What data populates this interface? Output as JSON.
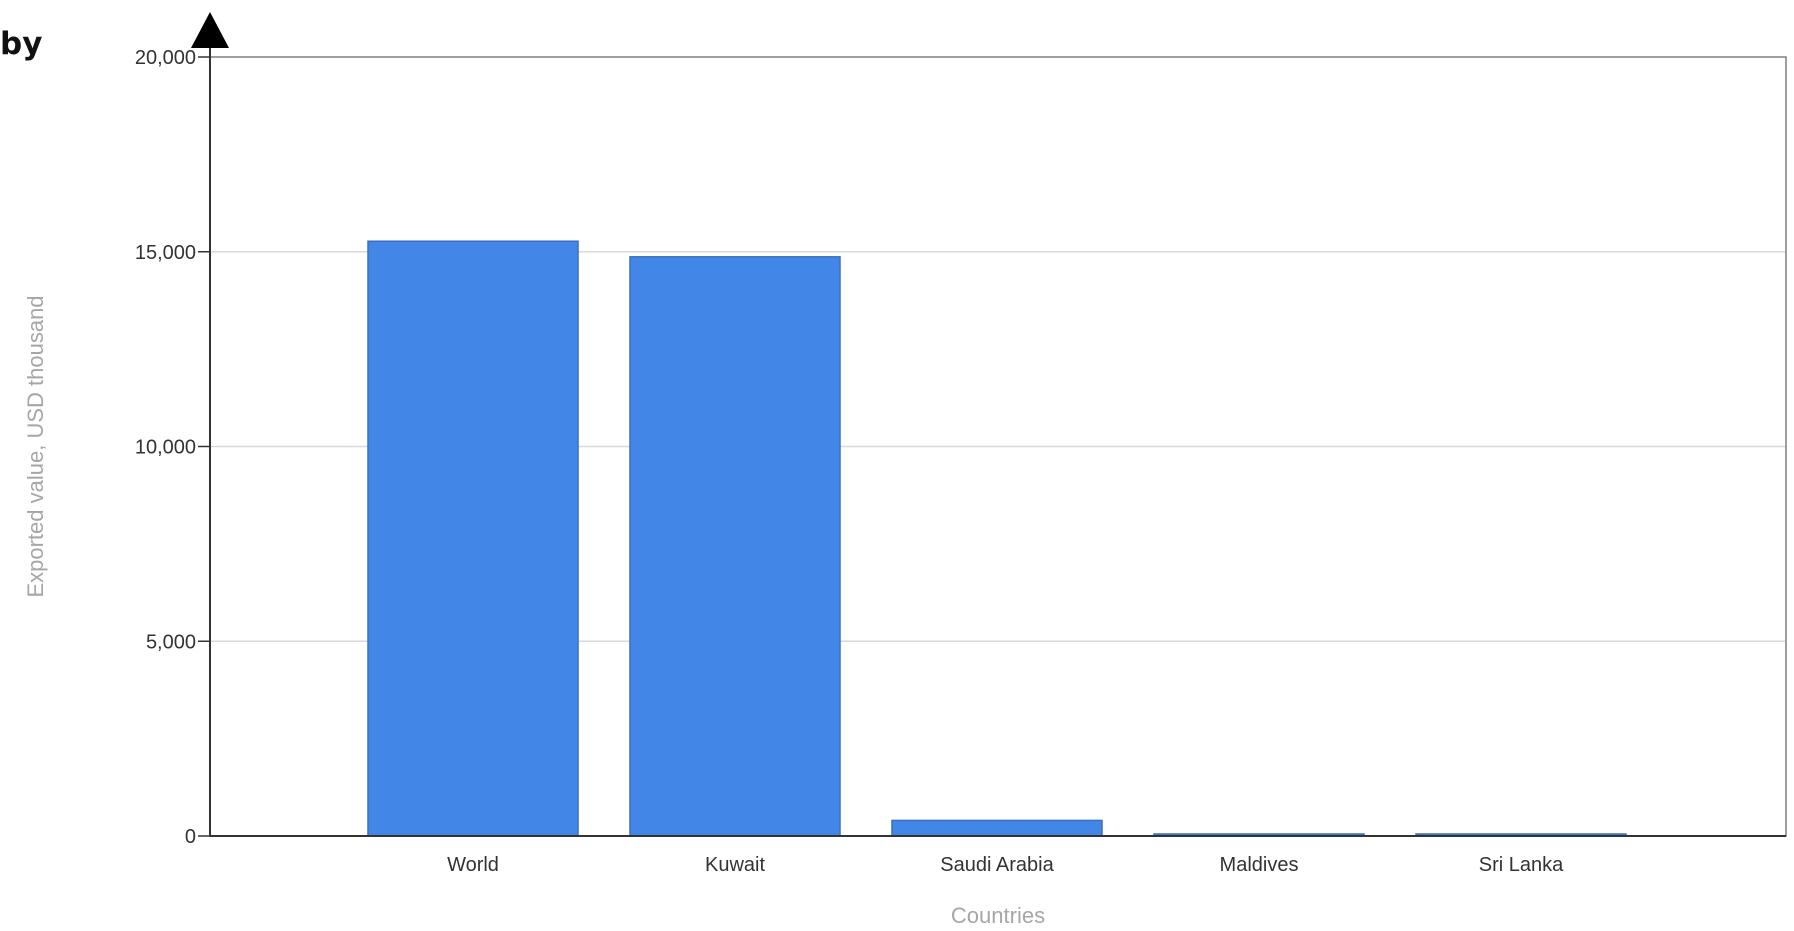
{
  "corner_text": "by",
  "chart_data": {
    "type": "bar",
    "categories": [
      "World",
      "Kuwait",
      "Saudi Arabia",
      "Maldives",
      "Sri Lanka"
    ],
    "values": [
      15270,
      14870,
      400,
      30,
      30
    ],
    "xlabel": "Countries",
    "ylabel": "Exported value, USD thousand",
    "ylim": [
      0,
      20000
    ],
    "yticks": [
      0,
      5000,
      10000,
      15000,
      20000
    ],
    "ytick_labels": [
      "0",
      "5,000",
      "10,000",
      "15,000",
      "20,000"
    ],
    "grid": true,
    "legend": "none",
    "colors": {
      "bar": "#4287e8",
      "bar_edge": "#3a6fbf",
      "grid": "#d9d9d9",
      "axis": "#333333"
    }
  }
}
